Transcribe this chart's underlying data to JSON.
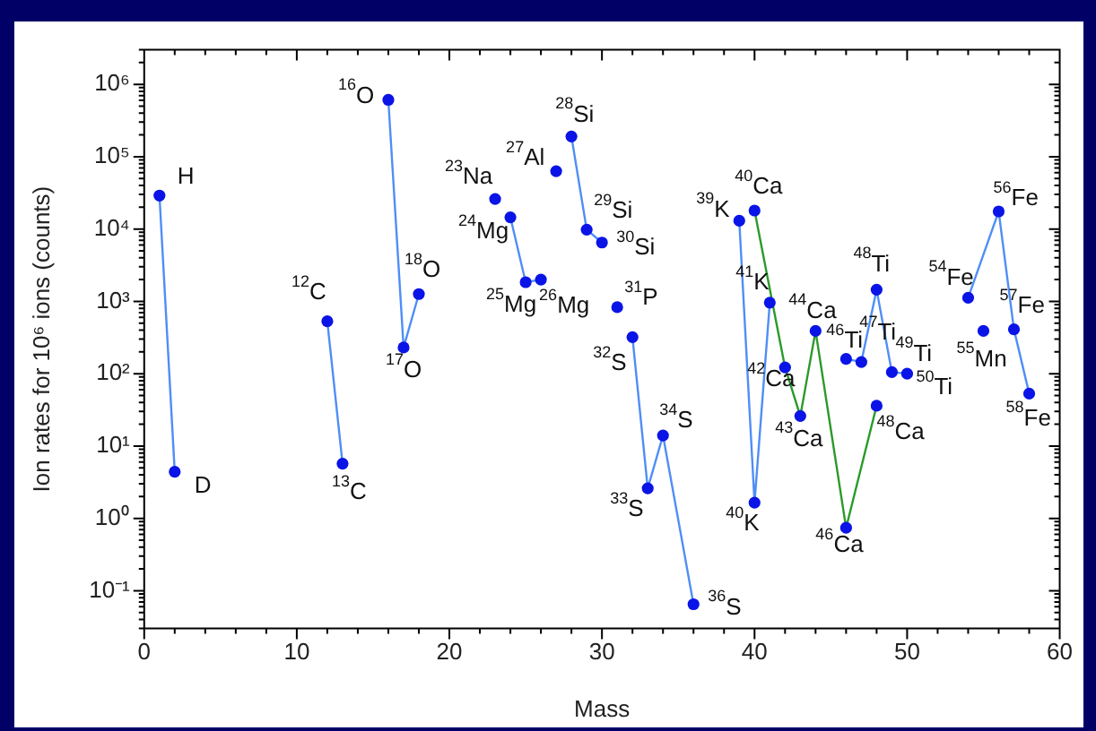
{
  "chart_data": {
    "type": "line",
    "xlabel": "Mass",
    "ylabel": "Ion rates for 10⁶ ions (counts)",
    "log": "y",
    "grid": false,
    "legend": false,
    "marker": "circle",
    "line_style": "solid",
    "xlim": [
      0,
      60
    ],
    "xticks": [
      0,
      10,
      20,
      30,
      40,
      50,
      60
    ],
    "ylim": [
      0.03,
      3000000
    ],
    "yticks": [
      {
        "value": 0.1,
        "label": "10⁻¹"
      },
      {
        "value": 1,
        "label": "10⁰"
      },
      {
        "value": 10,
        "label": "10¹"
      },
      {
        "value": 100,
        "label": "10²"
      },
      {
        "value": 1000,
        "label": "10³"
      },
      {
        "value": 10000,
        "label": "10⁴"
      },
      {
        "value": 100000,
        "label": "10⁵"
      },
      {
        "value": 1000000,
        "label": "10⁶"
      }
    ],
    "series": [
      {
        "color": "#4f8ef7",
        "x": [
          1,
          2
        ],
        "values": [
          29000,
          4.4
        ]
      },
      {
        "color": "#4f8ef7",
        "x": [
          12,
          13
        ],
        "values": [
          530,
          5.7
        ]
      },
      {
        "color": "#4f8ef7",
        "x": [
          16,
          17,
          18
        ],
        "values": [
          610000,
          230,
          1260
        ]
      },
      {
        "color": "#4f8ef7",
        "x": [
          24,
          25,
          26
        ],
        "values": [
          14500,
          1840,
          2000
        ]
      },
      {
        "color": "#4f8ef7",
        "x": [
          28,
          29,
          30
        ],
        "values": [
          190000,
          9800,
          6500
        ]
      },
      {
        "color": "#4f8ef7",
        "x": [
          32,
          33,
          34,
          36
        ],
        "values": [
          320,
          2.6,
          14,
          0.065
        ]
      },
      {
        "color": "#4f8ef7",
        "x": [
          39,
          40,
          41
        ],
        "values": [
          13000,
          1.65,
          960
        ]
      },
      {
        "color": "#2a9a2a",
        "x": [
          40,
          42,
          43,
          44,
          46,
          48
        ],
        "values": [
          18000,
          122,
          26,
          390,
          0.74,
          36
        ]
      },
      {
        "color": "#4f8ef7",
        "x": [
          46,
          47,
          48,
          49,
          50
        ],
        "values": [
          160,
          145,
          1450,
          105,
          100
        ]
      },
      {
        "color": "#4f8ef7",
        "x": [
          54,
          56,
          57,
          58
        ],
        "values": [
          1120,
          17500,
          410,
          53
        ]
      },
      {
        "type": "scatter",
        "color": "#0a14e6",
        "x": [
          23,
          27,
          31,
          55
        ],
        "values": [
          26000,
          63000,
          830,
          390
        ]
      }
    ],
    "annotations": [
      {
        "text": "H",
        "x": 1,
        "y": 29000
      },
      {
        "text": "D",
        "x": 2,
        "y": 4.4
      },
      {
        "text": "$^{12}$C",
        "x": 12,
        "y": 530
      },
      {
        "text": "$^{13}$C",
        "x": 13,
        "y": 5.7
      },
      {
        "text": "$^{16}$O",
        "x": 16,
        "y": 610000
      },
      {
        "text": "$^{17}$O",
        "x": 17,
        "y": 230
      },
      {
        "text": "$^{18}$O",
        "x": 18,
        "y": 1260
      },
      {
        "text": "$^{23}$Na",
        "x": 23,
        "y": 26000
      },
      {
        "text": "$^{24}$Mg",
        "x": 24,
        "y": 14500
      },
      {
        "text": "$^{25}$Mg",
        "x": 25,
        "y": 1840
      },
      {
        "text": "$^{26}$Mg",
        "x": 26,
        "y": 2000
      },
      {
        "text": "$^{27}$Al",
        "x": 27,
        "y": 63000
      },
      {
        "text": "$^{28}$Si",
        "x": 28,
        "y": 190000
      },
      {
        "text": "$^{29}$Si",
        "x": 29,
        "y": 9800
      },
      {
        "text": "$^{30}$Si",
        "x": 30,
        "y": 6500
      },
      {
        "text": "$^{31}$P",
        "x": 31,
        "y": 830
      },
      {
        "text": "$^{32}$S",
        "x": 32,
        "y": 320
      },
      {
        "text": "$^{33}$S",
        "x": 33,
        "y": 2.6
      },
      {
        "text": "$^{34}$S",
        "x": 34,
        "y": 14
      },
      {
        "text": "$^{36}$S",
        "x": 36,
        "y": 0.065
      },
      {
        "text": "$^{39}$K",
        "x": 39,
        "y": 13000
      },
      {
        "text": "$^{40}$Ca",
        "x": 40,
        "y": 18000
      },
      {
        "text": "$^{40}$K",
        "x": 40,
        "y": 1.65
      },
      {
        "text": "$^{41}$K",
        "x": 41,
        "y": 960
      },
      {
        "text": "$^{42}$Ca",
        "x": 42,
        "y": 122
      },
      {
        "text": "$^{43}$Ca",
        "x": 43,
        "y": 26
      },
      {
        "text": "$^{44}$Ca",
        "x": 44,
        "y": 390
      },
      {
        "text": "$^{46}$Ca",
        "x": 46,
        "y": 0.74
      },
      {
        "text": "$^{48}$Ca",
        "x": 48,
        "y": 36
      },
      {
        "text": "$^{46}$Ti",
        "x": 46,
        "y": 160
      },
      {
        "text": "$^{47}$Ti",
        "x": 47,
        "y": 145
      },
      {
        "text": "$^{48}$Ti",
        "x": 48,
        "y": 1450
      },
      {
        "text": "$^{49}$Ti",
        "x": 49,
        "y": 105
      },
      {
        "text": "$^{50}$Ti",
        "x": 50,
        "y": 100
      },
      {
        "text": "$^{54}$Fe",
        "x": 54,
        "y": 1120
      },
      {
        "text": "$^{55}$Mn",
        "x": 55,
        "y": 390
      },
      {
        "text": "$^{56}$Fe",
        "x": 56,
        "y": 17500
      },
      {
        "text": "$^{57}$Fe",
        "x": 57,
        "y": 410
      },
      {
        "text": "$^{58}$Fe",
        "x": 58,
        "y": 53
      }
    ]
  }
}
